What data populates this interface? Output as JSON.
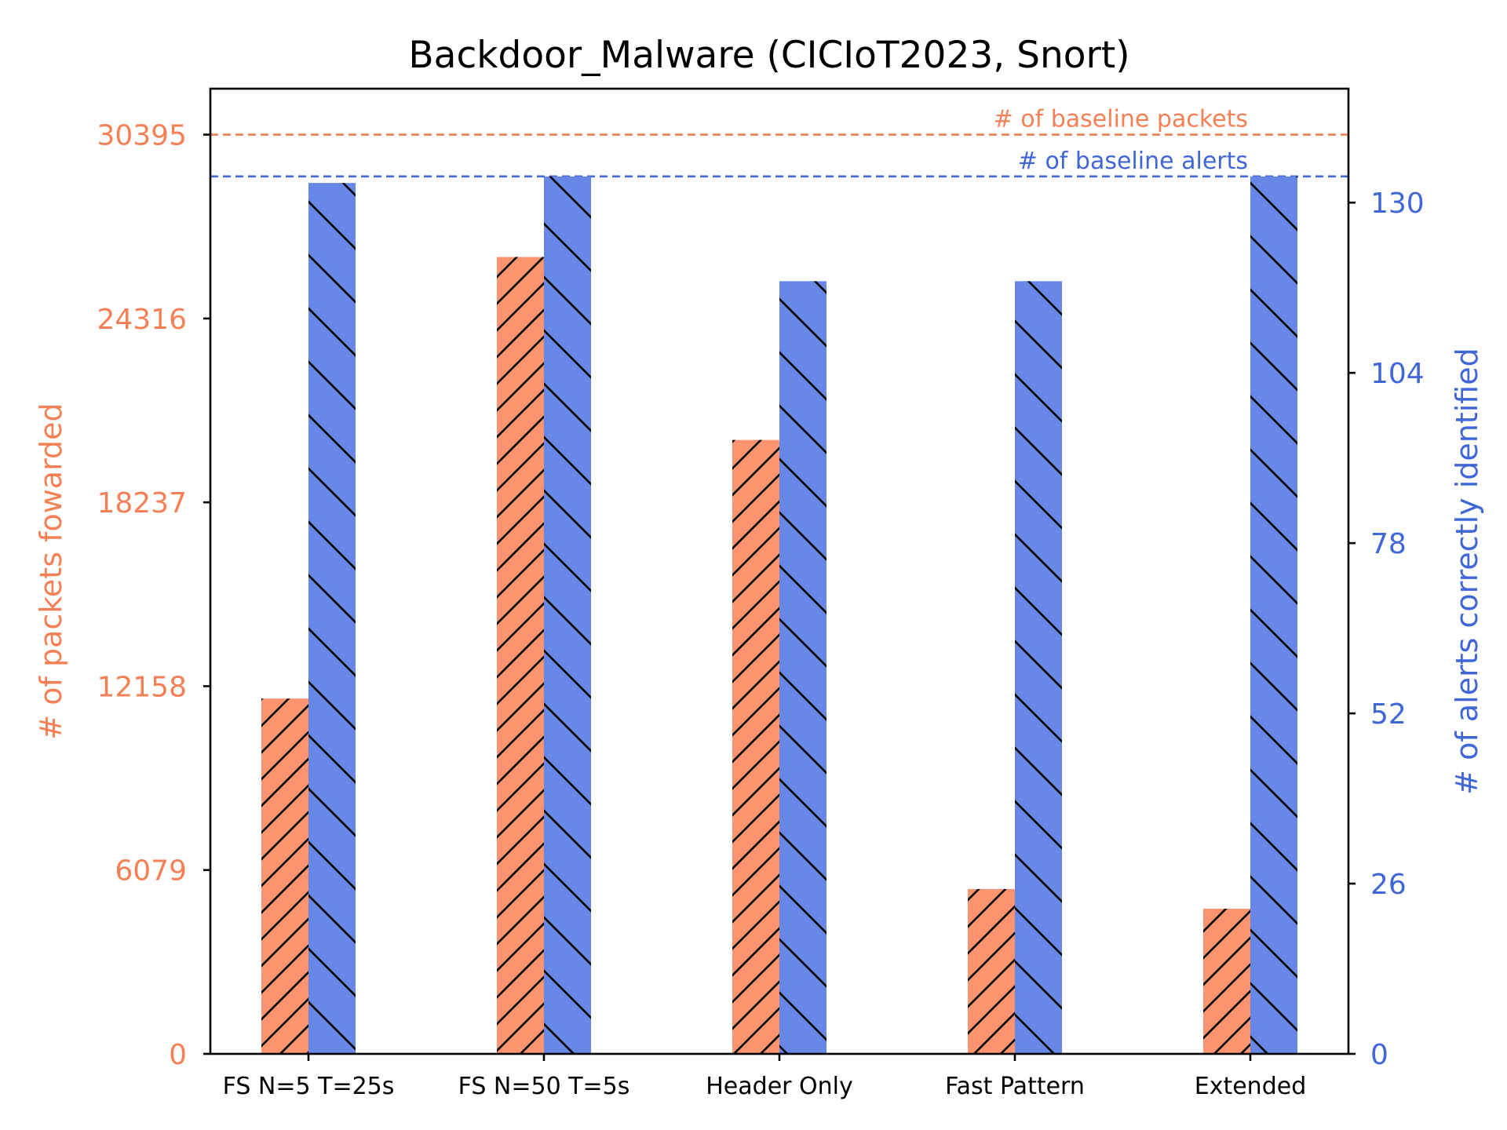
{
  "chart_data": {
    "type": "bar",
    "title": "Backdoor_Malware (CICIoT2023, Snort)",
    "categories": [
      "FS N=5 T=25s",
      "FS N=50 T=5s",
      "Header Only",
      "Fast Pattern",
      "Extended"
    ],
    "series": [
      {
        "axis": "left",
        "values": [
          11750,
          26350,
          20300,
          5450,
          4800
        ],
        "color": "#FF9470",
        "hatch": "forward-diagonal"
      },
      {
        "axis": "right",
        "values": [
          133,
          134,
          118,
          118,
          134
        ],
        "color": "#6787E6",
        "hatch": "backward-diagonal"
      }
    ],
    "left_axis": {
      "label": "# of packets fowarded",
      "ticks": [
        0,
        6079,
        12158,
        18237,
        24316,
        30395
      ],
      "ylim": [
        0,
        31915
      ],
      "color": "#F58055"
    },
    "right_axis": {
      "label": "# of alerts correctly identified",
      "ticks": [
        0,
        26,
        52,
        78,
        104,
        130
      ],
      "ylim": [
        0,
        147.4
      ],
      "color": "#4166D6"
    },
    "reference_lines": [
      {
        "axis": "left",
        "value": 30395,
        "label": "# of baseline packets",
        "color": "#F58055",
        "style": "dashed"
      },
      {
        "axis": "right",
        "value": 134,
        "label": "# of baseline alerts",
        "color": "#4166D6",
        "style": "dashed"
      }
    ],
    "grid": false,
    "legend": "none"
  }
}
